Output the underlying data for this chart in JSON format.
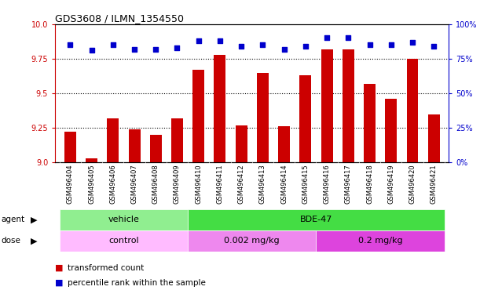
{
  "title": "GDS3608 / ILMN_1354550",
  "samples": [
    "GSM496404",
    "GSM496405",
    "GSM496406",
    "GSM496407",
    "GSM496408",
    "GSM496409",
    "GSM496410",
    "GSM496411",
    "GSM496412",
    "GSM496413",
    "GSM496414",
    "GSM496415",
    "GSM496416",
    "GSM496417",
    "GSM496418",
    "GSM496419",
    "GSM496420",
    "GSM496421"
  ],
  "transformed_count": [
    9.22,
    9.03,
    9.32,
    9.24,
    9.2,
    9.32,
    9.67,
    9.78,
    9.27,
    9.65,
    9.26,
    9.63,
    9.82,
    9.82,
    9.57,
    9.46,
    9.75,
    9.35
  ],
  "percentile_rank": [
    85,
    81,
    85,
    82,
    82,
    83,
    88,
    88,
    84,
    85,
    82,
    84,
    90,
    90,
    85,
    85,
    87,
    84
  ],
  "bar_color": "#cc0000",
  "dot_color": "#0000cc",
  "ylim_left": [
    9.0,
    10.0
  ],
  "ylim_right": [
    0,
    100
  ],
  "yticks_left": [
    9.0,
    9.25,
    9.5,
    9.75,
    10.0
  ],
  "yticks_right": [
    0,
    25,
    50,
    75,
    100
  ],
  "ytick_labels_right": [
    "0%",
    "25%",
    "50%",
    "75%",
    "100%"
  ],
  "grid_lines": [
    9.25,
    9.5,
    9.75
  ],
  "agent_labels": [
    {
      "text": "vehicle",
      "start": 0,
      "end": 5,
      "color": "#90ee90"
    },
    {
      "text": "BDE-47",
      "start": 6,
      "end": 17,
      "color": "#44dd44"
    }
  ],
  "dose_labels": [
    {
      "text": "control",
      "start": 0,
      "end": 5,
      "color": "#ffbbff"
    },
    {
      "text": "0.002 mg/kg",
      "start": 6,
      "end": 11,
      "color": "#ee88ee"
    },
    {
      "text": "0.2 mg/kg",
      "start": 12,
      "end": 17,
      "color": "#dd44dd"
    }
  ],
  "legend_bar_color": "#cc0000",
  "legend_dot_color": "#0000cc",
  "legend_bar_label": "transformed count",
  "legend_dot_label": "percentile rank within the sample",
  "plot_bg_color": "#ffffff",
  "fig_bg_color": "#ffffff",
  "xticklabel_bg": "#d8d8d8"
}
